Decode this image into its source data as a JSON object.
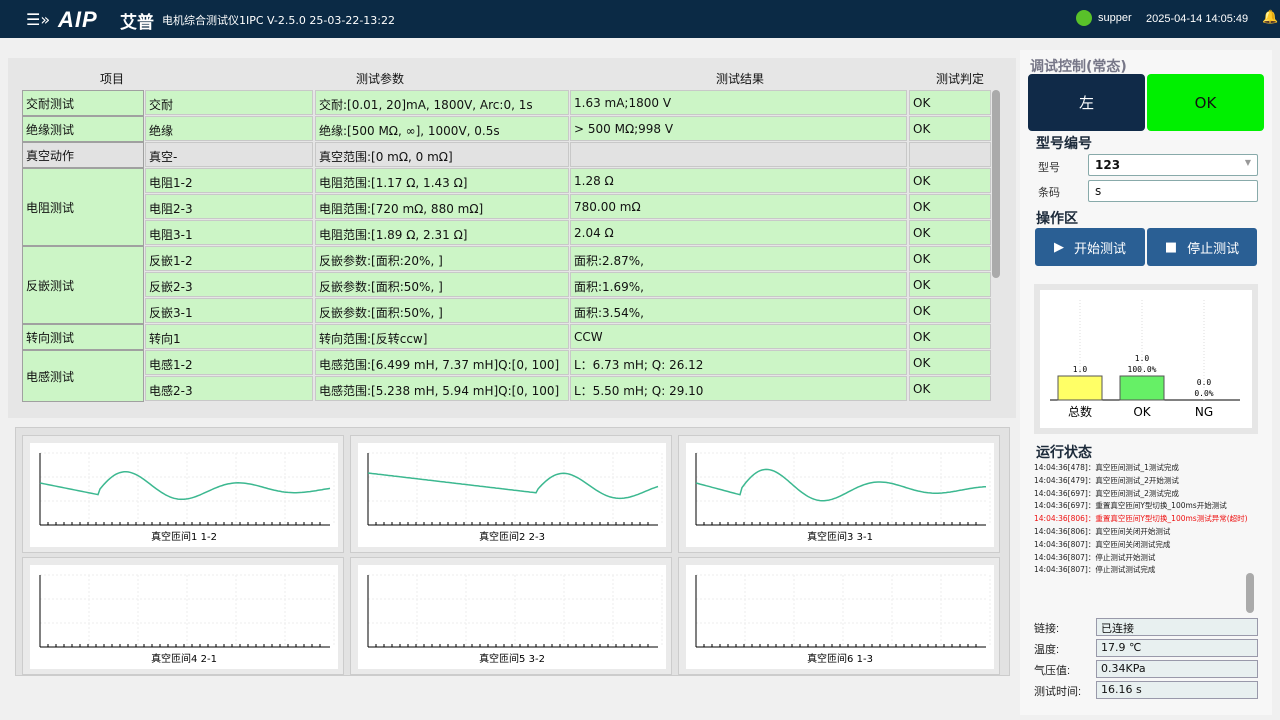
{
  "header": {
    "logo": "AIP",
    "logo_cn": "艾普",
    "title": "电机综合测试仪1IPC V-2.5.0 25-03-22-13:22",
    "user": "supper",
    "datetime": "2025-04-14 14:05:49"
  },
  "table": {
    "headers": [
      "项目",
      "测试参数",
      "测试结果",
      "测试判定"
    ],
    "groups": [
      {
        "label": "交耐测试",
        "rows": [
          [
            "交耐",
            "交耐:[0.01, 20]mA, 1800V, Arc:0, 1s",
            "1.63 mA;1800 V",
            "OK"
          ]
        ]
      },
      {
        "label": "绝缘测试",
        "rows": [
          [
            "绝缘",
            "绝缘:[500 MΩ, ∞], 1000V, 0.5s",
            "> 500 MΩ;998 V",
            "OK"
          ]
        ]
      },
      {
        "label": "真空动作",
        "gray": true,
        "rows": [
          [
            "真空-",
            "真空范围:[0 mΩ, 0 mΩ]",
            "",
            ""
          ]
        ]
      },
      {
        "label": "电阻测试",
        "rows": [
          [
            "电阻1-2",
            "电阻范围:[1.17 Ω, 1.43 Ω]",
            "1.28 Ω",
            "OK"
          ],
          [
            "电阻2-3",
            "电阻范围:[720 mΩ, 880 mΩ]",
            "780.00 mΩ",
            "OK"
          ],
          [
            "电阻3-1",
            "电阻范围:[1.89 Ω, 2.31 Ω]",
            "2.04 Ω",
            "OK"
          ]
        ]
      },
      {
        "label": "反嵌测试",
        "rows": [
          [
            "反嵌1-2",
            "反嵌参数:[面积:20%, ]",
            "面积:2.87%,",
            "OK"
          ],
          [
            "反嵌2-3",
            "反嵌参数:[面积:50%, ]",
            "面积:1.69%,",
            "OK"
          ],
          [
            "反嵌3-1",
            "反嵌参数:[面积:50%, ]",
            "面积:3.54%,",
            "OK"
          ]
        ]
      },
      {
        "label": "转向测试",
        "rows": [
          [
            "转向1",
            "转向范围:[反转ccw]",
            "CCW",
            "OK"
          ]
        ]
      },
      {
        "label": "电感测试",
        "rows": [
          [
            "电感1-2",
            "电感范围:[6.499 mH, 7.37 mH]Q:[0, 100]",
            "L：6.73 mH; Q: 26.12",
            "OK"
          ],
          [
            "电感2-3",
            "电感范围:[5.238 mH, 5.94 mH]Q:[0, 100]",
            "L：5.50 mH; Q: 29.10",
            "OK"
          ]
        ]
      }
    ]
  },
  "waveforms": [
    {
      "label": "真空匝间1 1-2",
      "has_wave": true,
      "color": "#3cb890"
    },
    {
      "label": "真空匝间2 2-3",
      "has_wave": true,
      "color": "#3cb890"
    },
    {
      "label": "真空匝间3 3-1",
      "has_wave": true,
      "color": "#3cb890"
    },
    {
      "label": "真空匝间4 2-1",
      "has_wave": false
    },
    {
      "label": "真空匝间5 3-2",
      "has_wave": false
    },
    {
      "label": "真空匝间6 1-3",
      "has_wave": false
    }
  ],
  "control": {
    "title": "调试控制(常态)",
    "left_label": "左",
    "ok_label": "OK",
    "ok_color": "#00f000"
  },
  "model": {
    "title": "型号编号",
    "model_label": "型号",
    "model_value": "123",
    "barcode_label": "条码",
    "barcode_value": "s"
  },
  "ops": {
    "title": "操作区",
    "start": "开始测试",
    "stop": "停止测试"
  },
  "chart_data": {
    "type": "bar",
    "categories": [
      "总数",
      "OK",
      "NG"
    ],
    "values": [
      1.0,
      1.0,
      0.0
    ],
    "labels": [
      "1.0",
      "1.0\n100.0%",
      "0.0\n0.0%"
    ],
    "colors": [
      "#ffff66",
      "#66f066",
      "#cccccc"
    ]
  },
  "status": {
    "title": "运行状态",
    "log": [
      {
        "t": "14:04:36[478]：真空匝间测试_1测试完成"
      },
      {
        "t": "14:04:36[479]：真空匝间测试_2开始测试"
      },
      {
        "t": "14:04:36[697]：真空匝间测试_2测试完成"
      },
      {
        "t": "14:04:36[697]：重置真空匝间Y型切换_100ms开始测试"
      },
      {
        "t": "14:04:36[806]：重置真空匝间Y型切换_100ms测试异常(超时)",
        "error": true
      },
      {
        "t": "14:04:36[806]：真空匝间关闭开始测试"
      },
      {
        "t": "14:04:36[807]：真空匝间关闭测试完成"
      },
      {
        "t": "14:04:36[807]：停止测试开始测试"
      },
      {
        "t": "14:04:36[807]：停止测试测试完成"
      }
    ],
    "fields": [
      [
        "链接:",
        "已连接"
      ],
      [
        "温度:",
        "17.9 ℃"
      ],
      [
        "气压值:",
        "0.34KPa"
      ],
      [
        "测试时间:",
        "16.16 s"
      ]
    ]
  }
}
